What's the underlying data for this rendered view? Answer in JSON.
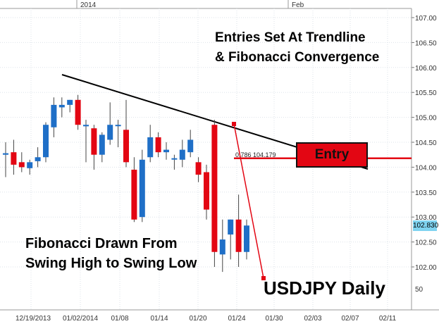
{
  "chart_data": {
    "type": "candlestick",
    "title": "USDJPY Daily",
    "series_name": "USDJPY",
    "colors": {
      "up": "#1f6fc7",
      "down": "#e30613",
      "trendline": "#000000",
      "fib_line": "#e30613",
      "entry_box": "#e30613",
      "last_price_tag": "#7fd3f0"
    },
    "y_axis": {
      "side": "right",
      "ylim": [
        101.75,
        107.1
      ],
      "ticks": [
        "107.00",
        "106.50",
        "106.00",
        "105.50",
        "105.00",
        "104.50",
        "104.00",
        "103.50",
        "103.00",
        "102.50",
        "102.00"
      ],
      "tick_values": [
        107.0,
        106.5,
        106.0,
        105.5,
        105.0,
        104.5,
        104.0,
        103.5,
        103.0,
        102.5,
        102.0
      ]
    },
    "x_axis": {
      "top_labels": [
        "2014",
        "Feb"
      ],
      "bottom_labels": [
        "12/19/2013",
        "01/02/2014",
        "01/08",
        "01/14",
        "01/20",
        "01/24",
        "01/30",
        "02/03",
        "02/07",
        "02/11"
      ],
      "bottom_extra": "50",
      "grid": true
    },
    "candles": [
      {
        "o": 104.25,
        "h": 104.5,
        "l": 103.8,
        "c": 104.28
      },
      {
        "o": 104.3,
        "h": 104.55,
        "l": 103.85,
        "c": 104.05
      },
      {
        "o": 104.1,
        "h": 104.3,
        "l": 103.9,
        "c": 104.0
      },
      {
        "o": 103.98,
        "h": 104.15,
        "l": 103.85,
        "c": 104.1
      },
      {
        "o": 104.12,
        "h": 104.4,
        "l": 104.0,
        "c": 104.2
      },
      {
        "o": 104.2,
        "h": 104.9,
        "l": 104.1,
        "c": 104.85
      },
      {
        "o": 104.8,
        "h": 105.4,
        "l": 104.6,
        "c": 105.25
      },
      {
        "o": 105.2,
        "h": 105.4,
        "l": 105.0,
        "c": 105.25
      },
      {
        "o": 105.25,
        "h": 105.35,
        "l": 105.1,
        "c": 105.35
      },
      {
        "o": 105.35,
        "h": 105.45,
        "l": 104.75,
        "c": 104.85
      },
      {
        "o": 104.82,
        "h": 104.95,
        "l": 104.1,
        "c": 104.85
      },
      {
        "o": 104.78,
        "h": 104.85,
        "l": 103.95,
        "c": 104.25
      },
      {
        "o": 104.25,
        "h": 104.7,
        "l": 104.1,
        "c": 104.65
      },
      {
        "o": 104.55,
        "h": 105.3,
        "l": 104.45,
        "c": 104.85
      },
      {
        "o": 104.85,
        "h": 104.95,
        "l": 104.4,
        "c": 104.85
      },
      {
        "o": 104.75,
        "h": 105.35,
        "l": 104.0,
        "c": 104.1
      },
      {
        "o": 103.95,
        "h": 104.2,
        "l": 102.9,
        "c": 102.95
      },
      {
        "o": 103.0,
        "h": 104.35,
        "l": 102.9,
        "c": 104.15
      },
      {
        "o": 104.2,
        "h": 104.85,
        "l": 104.1,
        "c": 104.6
      },
      {
        "o": 104.6,
        "h": 104.7,
        "l": 104.2,
        "c": 104.3
      },
      {
        "o": 104.3,
        "h": 104.5,
        "l": 104.15,
        "c": 104.35
      },
      {
        "o": 104.18,
        "h": 104.25,
        "l": 103.95,
        "c": 104.18
      },
      {
        "o": 104.15,
        "h": 104.55,
        "l": 104.0,
        "c": 104.35
      },
      {
        "o": 104.3,
        "h": 104.75,
        "l": 104.2,
        "c": 104.55
      },
      {
        "o": 104.1,
        "h": 104.2,
        "l": 103.7,
        "c": 103.85
      },
      {
        "o": 103.9,
        "h": 104.05,
        "l": 102.95,
        "c": 103.15
      },
      {
        "o": 104.85,
        "h": 104.95,
        "l": 102.0,
        "c": 102.3
      },
      {
        "o": 102.25,
        "h": 102.95,
        "l": 101.9,
        "c": 102.55
      },
      {
        "o": 102.65,
        "h": 102.95,
        "l": 102.15,
        "c": 102.95
      },
      {
        "o": 102.95,
        "h": 103.45,
        "l": 102.0,
        "c": 102.3
      },
      {
        "o": 102.3,
        "h": 102.95,
        "l": 102.15,
        "c": 102.83
      }
    ],
    "last_price": "102.830",
    "fibonacci": {
      "label": "0.786 104.179",
      "level": 104.179
    },
    "annotations": {
      "entries_line1": "Entries Set At Trendline",
      "entries_line2": "& Fibonacci Convergence",
      "fib_line1": "Fibonacci Drawn From",
      "fib_line2": "Swing High to Swing Low",
      "entry_label": "Entry"
    }
  }
}
